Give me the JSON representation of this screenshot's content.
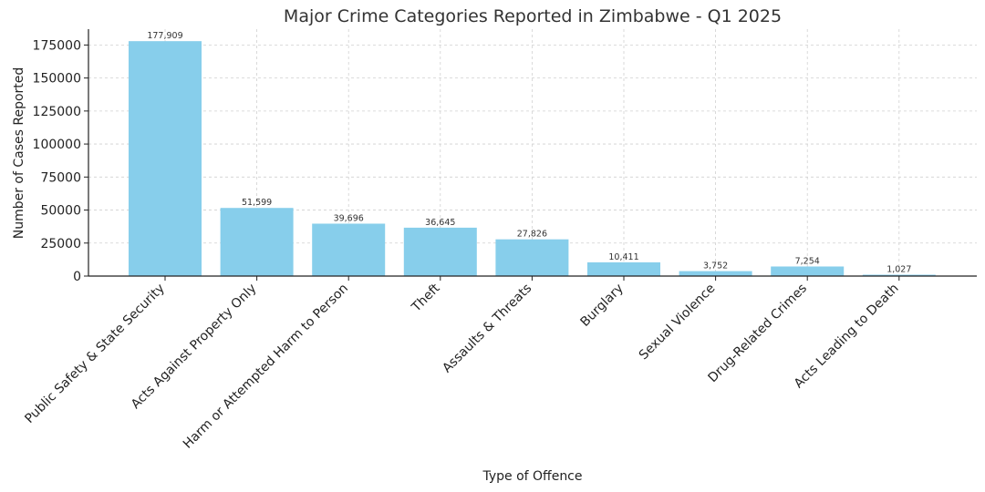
{
  "chart_data": {
    "type": "bar",
    "title": "Major Crime Categories Reported in Zimbabwe - Q1 2025",
    "xlabel": "Type of Offence",
    "ylabel": "Number of Cases Reported",
    "categories": [
      "Public Safety & State Security",
      "Acts Against Property Only",
      "Harm or Attempted Harm to Person",
      "Theft",
      "Assaults & Threats",
      "Burglary",
      "Sexual Violence",
      "Drug-Related Crimes",
      "Acts Leading to Death"
    ],
    "values": [
      177909,
      51599,
      39696,
      36645,
      27826,
      10411,
      3752,
      7254,
      1027
    ],
    "data_labels": [
      "177,909",
      "51,599",
      "39,696",
      "36,645",
      "27,826",
      "10,411",
      "3,752",
      "7,254",
      "1,027"
    ],
    "ylim": [
      0,
      187000
    ],
    "yticks": [
      0,
      25000,
      50000,
      75000,
      100000,
      125000,
      150000,
      175000
    ],
    "ytick_labels": [
      "0",
      "25000",
      "50000",
      "75000",
      "100000",
      "125000",
      "150000",
      "175000"
    ],
    "bar_color": "#87CEEB",
    "grid": true,
    "legend": "none"
  }
}
